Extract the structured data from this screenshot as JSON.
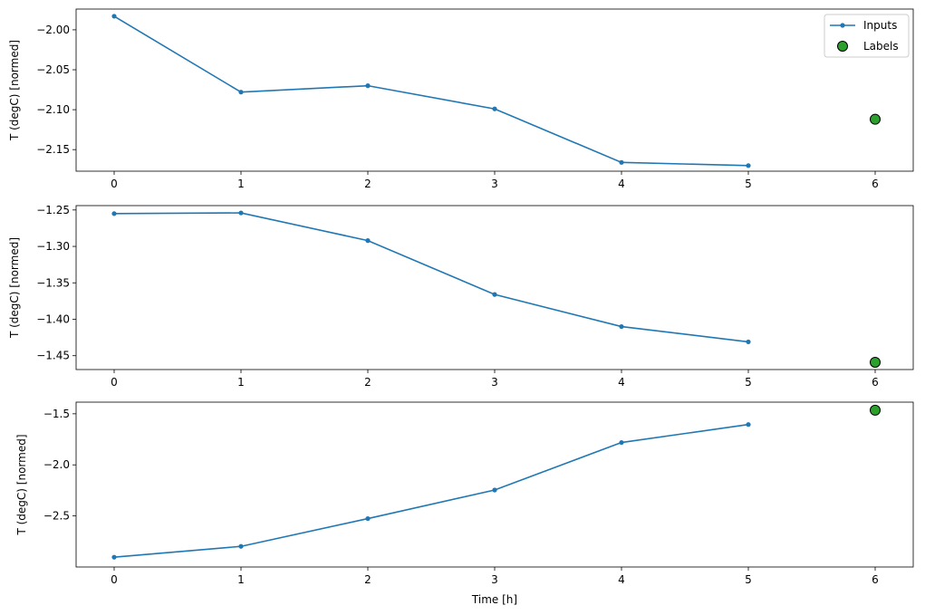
{
  "chart_data": [
    {
      "type": "line",
      "ylabel": "T (degC) [normed]",
      "xlabel": "",
      "x_ticks": [
        0,
        1,
        2,
        3,
        4,
        5,
        6
      ],
      "y_ticks": [
        -2.0,
        -2.05,
        -2.1,
        -2.15
      ],
      "y_tick_labels": [
        "−2.00",
        "−2.05",
        "−2.10",
        "−2.15"
      ],
      "xlim": [
        -0.3,
        6.3
      ],
      "ylim": [
        -2.177,
        -1.974
      ],
      "grid": false,
      "legend": {
        "placement": "top-right",
        "entries": [
          "Inputs",
          "Labels"
        ]
      },
      "series": [
        {
          "name": "Inputs",
          "type": "line",
          "x": [
            0,
            1,
            2,
            3,
            4,
            5
          ],
          "y": [
            -1.983,
            -2.078,
            -2.07,
            -2.099,
            -2.166,
            -2.17
          ]
        },
        {
          "name": "Labels",
          "type": "scatter",
          "x": [
            6
          ],
          "y": [
            -2.112
          ]
        }
      ]
    },
    {
      "type": "line",
      "ylabel": "T (degC) [normed]",
      "xlabel": "",
      "x_ticks": [
        0,
        1,
        2,
        3,
        4,
        5,
        6
      ],
      "y_ticks": [
        -1.25,
        -1.3,
        -1.35,
        -1.4,
        -1.45
      ],
      "y_tick_labels": [
        "−1.25",
        "−1.30",
        "−1.35",
        "−1.40",
        "−1.45"
      ],
      "xlim": [
        -0.3,
        6.3
      ],
      "ylim": [
        -1.469,
        -1.244
      ],
      "grid": false,
      "series": [
        {
          "name": "Inputs",
          "type": "line",
          "x": [
            0,
            1,
            2,
            3,
            4,
            5
          ],
          "y": [
            -1.255,
            -1.254,
            -1.292,
            -1.366,
            -1.41,
            -1.431
          ]
        },
        {
          "name": "Labels",
          "type": "scatter",
          "x": [
            6
          ],
          "y": [
            -1.459
          ]
        }
      ]
    },
    {
      "type": "line",
      "ylabel": "T (degC) [normed]",
      "xlabel": "Time [h]",
      "x_ticks": [
        0,
        1,
        2,
        3,
        4,
        5,
        6
      ],
      "y_ticks": [
        -1.5,
        -2.0,
        -2.5
      ],
      "y_tick_labels": [
        "−1.5",
        "−2.0",
        "−2.5"
      ],
      "xlim": [
        -0.3,
        6.3
      ],
      "ylim": [
        -3.0,
        -1.386
      ],
      "grid": false,
      "series": [
        {
          "name": "Inputs",
          "type": "line",
          "x": [
            0,
            1,
            2,
            3,
            4,
            5
          ],
          "y": [
            -2.904,
            -2.798,
            -2.526,
            -2.246,
            -1.781,
            -1.605
          ]
        },
        {
          "name": "Labels",
          "type": "scatter",
          "x": [
            6
          ],
          "y": [
            -1.465
          ]
        }
      ]
    }
  ],
  "colors": {
    "inputs": "#1f77b4",
    "labels": "#2ca02c"
  }
}
